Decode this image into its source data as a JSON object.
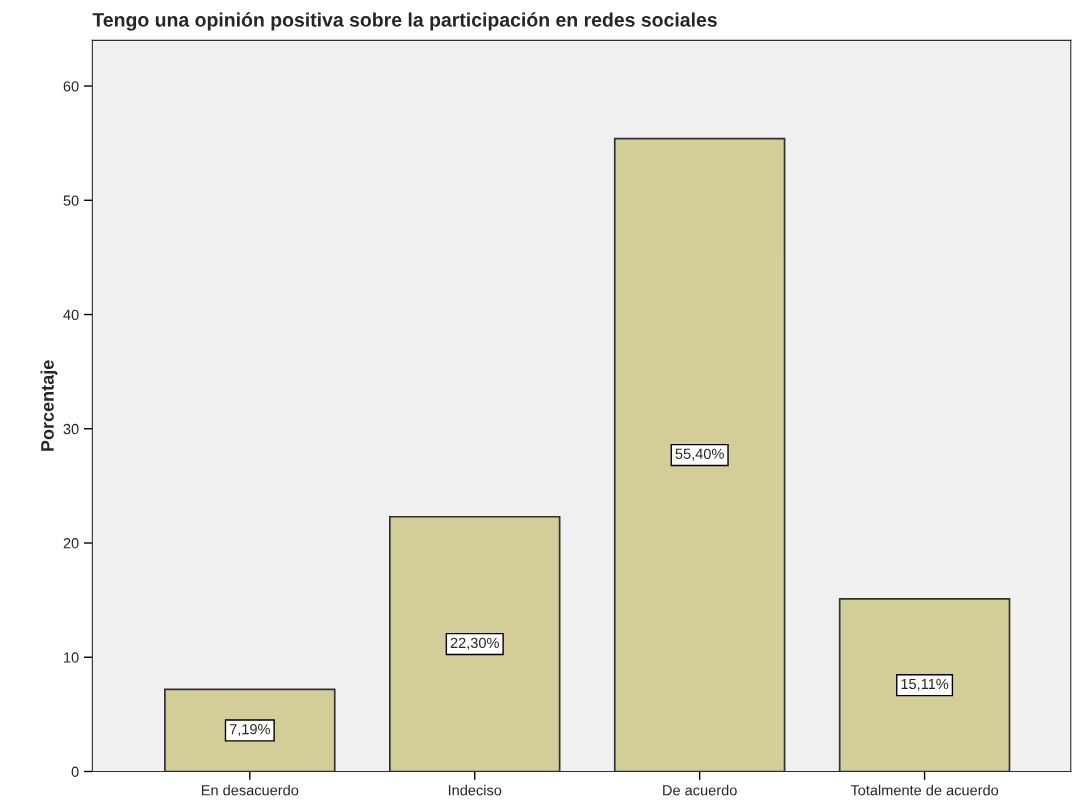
{
  "chart_data": {
    "type": "bar",
    "title": "Tengo una opinión positiva sobre la participación en redes sociales",
    "ylabel": "Porcentaje",
    "categories": [
      "En desacuerdo",
      "Indeciso",
      "De acuerdo",
      "Totalmente de acuerdo"
    ],
    "values": [
      7.19,
      22.3,
      55.4,
      15.11
    ],
    "value_labels": [
      "7,19%",
      "22,30%",
      "55,40%",
      "15,11%"
    ],
    "color": "#d3ce97",
    "ylim": [
      0,
      64
    ],
    "yticks": [
      0,
      10,
      20,
      30,
      40,
      50,
      60
    ],
    "grid": false,
    "legend": false
  }
}
